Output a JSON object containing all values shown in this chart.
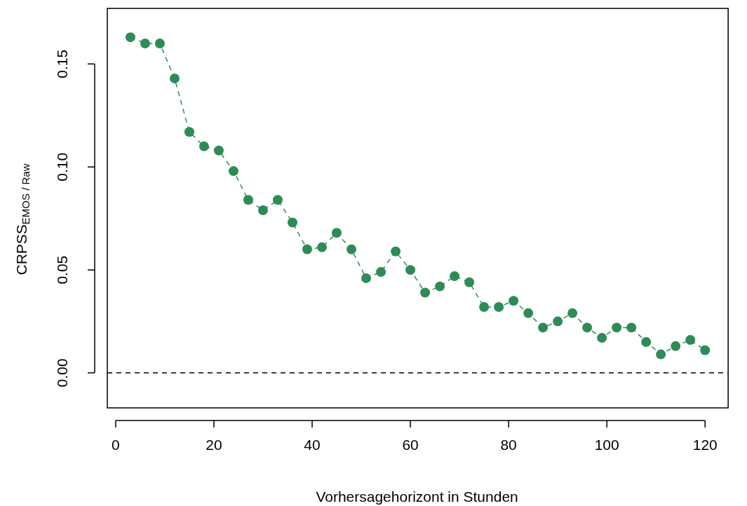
{
  "chart_data": {
    "type": "line",
    "xlabel": "Vorhersagehorizont in Stunden",
    "ylabel": "CRPSS$_{EMOS / Raw}$",
    "x": [
      3,
      6,
      9,
      12,
      15,
      18,
      21,
      24,
      27,
      30,
      33,
      36,
      39,
      42,
      45,
      48,
      51,
      54,
      57,
      60,
      63,
      66,
      69,
      72,
      75,
      78,
      81,
      84,
      87,
      90,
      93,
      96,
      99,
      102,
      105,
      108,
      111,
      114,
      117,
      120
    ],
    "series": [
      {
        "color": "#2e8b57",
        "values": [
          0.163,
          0.16,
          0.16,
          0.143,
          0.117,
          0.11,
          0.108,
          0.098,
          0.084,
          0.079,
          0.084,
          0.073,
          0.06,
          0.061,
          0.068,
          0.06,
          0.046,
          0.049,
          0.059,
          0.05,
          0.039,
          0.042,
          0.047,
          0.044,
          0.032,
          0.032,
          0.035,
          0.029,
          0.022,
          0.025,
          0.029,
          0.022,
          0.017,
          0.022,
          0.022,
          0.015,
          0.009,
          0.013,
          0.016,
          0.011
        ]
      }
    ],
    "xlim": [
      -1.7,
      124.7
    ],
    "ylim": [
      -0.017,
      0.177
    ],
    "xticks": [
      0,
      20,
      40,
      60,
      80,
      100,
      120
    ],
    "yticks": [
      {
        "value": 0,
        "label": "0.00"
      },
      {
        "value": 0.05,
        "label": "0.05"
      },
      {
        "value": 0.1,
        "label": "0.10"
      },
      {
        "value": 0.15,
        "label": "0.15"
      }
    ],
    "ref_lines": [
      {
        "axis": "y",
        "value": 0,
        "color": "#000000",
        "line_style": "dashed"
      }
    ],
    "marker": "circle",
    "line_style": "dashed",
    "grid": false,
    "legend": false
  }
}
